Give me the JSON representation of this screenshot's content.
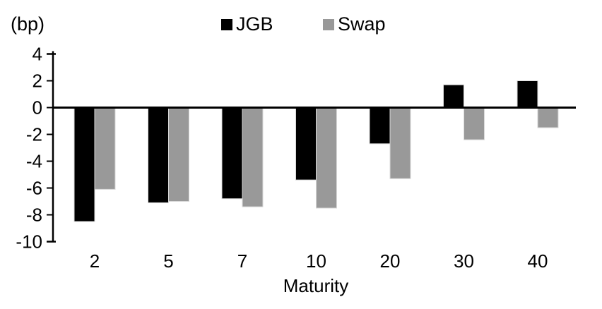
{
  "chart_data": {
    "type": "bar",
    "title": "",
    "unit_label": "(bp)",
    "xlabel": "Maturity",
    "ylabel": "",
    "categories": [
      "2",
      "5",
      "7",
      "10",
      "20",
      "30",
      "40"
    ],
    "series": [
      {
        "name": "JGB",
        "color": "#000000",
        "values": [
          -8.5,
          -7.1,
          -6.8,
          -5.4,
          -2.7,
          1.7,
          2.0
        ]
      },
      {
        "name": "Swap",
        "color": "#999999",
        "values": [
          -6.1,
          -7.0,
          -7.4,
          -7.5,
          -5.3,
          -2.4,
          -1.5
        ]
      }
    ],
    "ylim": [
      -10,
      4
    ],
    "ytick_step": 2,
    "ytick_labels": [
      "4",
      "2",
      "0",
      "-2",
      "-4",
      "-6",
      "-8",
      "-10"
    ],
    "legend_position": "top-center",
    "grid": false,
    "axis_color": "#000000",
    "bar_outline_color": "#d9d9d9",
    "background_color": "#ffffff"
  }
}
